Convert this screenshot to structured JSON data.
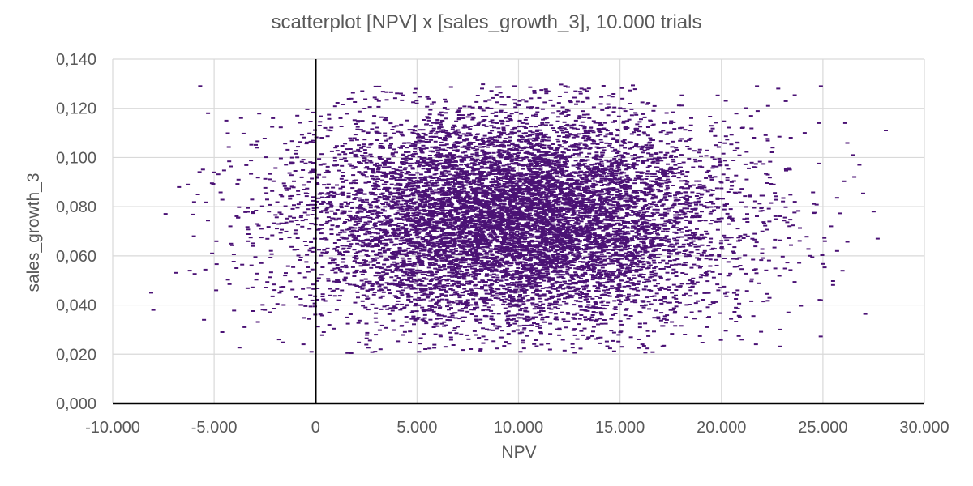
{
  "chart_data": {
    "type": "scatter",
    "title": "scatterplot [NPV] x [sales_growth_3], 10.000 trials",
    "xlabel": "NPV",
    "ylabel": "sales_growth_3",
    "xlim": [
      -10000,
      30000
    ],
    "ylim": [
      0,
      0.14
    ],
    "x_ticks": [
      -10000,
      -5000,
      0,
      5000,
      10000,
      15000,
      20000,
      25000,
      30000
    ],
    "x_tick_labels": [
      "-10.000",
      "-5.000",
      "0",
      "5.000",
      "10.000",
      "15.000",
      "20.000",
      "25.000",
      "30.000"
    ],
    "y_ticks": [
      0,
      0.02,
      0.04,
      0.06,
      0.08,
      0.1,
      0.12,
      0.14
    ],
    "y_tick_labels": [
      "0,000",
      "0,020",
      "0,040",
      "0,060",
      "0,080",
      "0,100",
      "0,120",
      "0,140"
    ],
    "grid": true,
    "marker_color": "#4b1275",
    "series": [
      {
        "trials": 10000,
        "x_distribution": {
          "kind": "normal",
          "mean": 9800,
          "sd": 5200,
          "min": -8100,
          "max": 28100
        },
        "y_distribution": {
          "kind": "normal",
          "mean": 0.075,
          "sd": 0.022,
          "min": 0.02,
          "max": 0.13
        },
        "values": [
          [
            -8100,
            0.045
          ],
          [
            -8000,
            0.038
          ],
          [
            -6300,
            0.089
          ],
          [
            -6200,
            0.054
          ],
          [
            -6000,
            0.068
          ],
          [
            -5800,
            0.085
          ],
          [
            -5500,
            0.034
          ],
          [
            -5300,
            0.118
          ],
          [
            -5100,
            0.061
          ],
          [
            -4900,
            0.046
          ],
          [
            -4600,
            0.029
          ],
          [
            -4400,
            0.115
          ],
          [
            -4200,
            0.072
          ],
          [
            -3900,
            0.055
          ],
          [
            -3800,
            0.091
          ],
          [
            -3500,
            0.031
          ],
          [
            -3100,
            0.064
          ],
          [
            -2900,
            0.104
          ],
          [
            -2500,
            0.038
          ],
          [
            -2300,
            0.078
          ],
          [
            -2100,
            0.116
          ],
          [
            -1800,
            0.026
          ],
          [
            -1500,
            0.052
          ],
          [
            -1200,
            0.098
          ],
          [
            -900,
            0.117
          ],
          [
            -600,
            0.024
          ],
          [
            -300,
            0.071
          ],
          [
            -200,
            0.021
          ],
          [
            200,
            0.113
          ],
          [
            400,
            0.029
          ],
          [
            2300,
            0.127
          ],
          [
            3200,
            0.022
          ],
          [
            4200,
            0.126
          ],
          [
            5100,
            0.021
          ],
          [
            6400,
            0.023
          ],
          [
            8200,
            0.128
          ],
          [
            9800,
            0.129
          ],
          [
            10100,
            0.021
          ],
          [
            12300,
            0.129
          ],
          [
            13100,
            0.128
          ],
          [
            15100,
            0.023
          ],
          [
            16100,
            0.024
          ],
          [
            18200,
            0.028
          ],
          [
            19300,
            0.031
          ],
          [
            20800,
            0.046
          ],
          [
            21700,
            0.024
          ],
          [
            22300,
            0.121
          ],
          [
            22800,
            0.128
          ],
          [
            22900,
            0.03
          ],
          [
            23300,
            0.037
          ],
          [
            24100,
            0.11
          ],
          [
            24800,
            0.114
          ],
          [
            24900,
            0.129
          ],
          [
            24900,
            0.042
          ],
          [
            25400,
            0.072
          ],
          [
            25700,
            0.062
          ],
          [
            26100,
            0.114
          ],
          [
            26500,
            0.101
          ],
          [
            26800,
            0.097
          ],
          [
            27500,
            0.078
          ],
          [
            27700,
            0.067
          ],
          [
            28100,
            0.111
          ]
        ]
      }
    ]
  }
}
